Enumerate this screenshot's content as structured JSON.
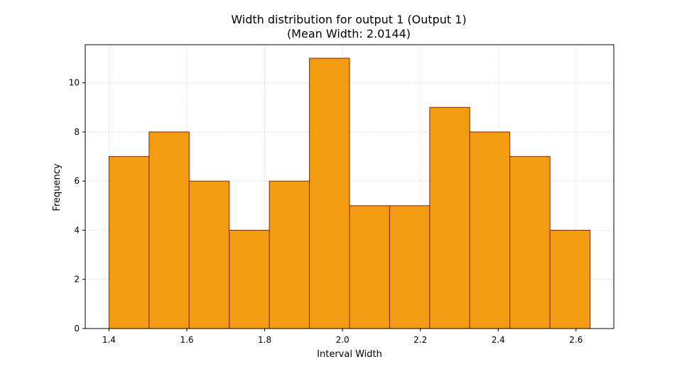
{
  "chart_data": {
    "type": "bar",
    "title": "Width distribution for output 1 (Output 1)",
    "subtitle": "(Mean Width: 2.0144)",
    "xlabel": "Interval Width",
    "ylabel": "Frequency",
    "bins": [
      {
        "start": 1.4,
        "end": 1.503,
        "count": 7
      },
      {
        "start": 1.503,
        "end": 1.606,
        "count": 8
      },
      {
        "start": 1.606,
        "end": 1.709,
        "count": 6
      },
      {
        "start": 1.709,
        "end": 1.812,
        "count": 4
      },
      {
        "start": 1.812,
        "end": 1.915,
        "count": 6
      },
      {
        "start": 1.915,
        "end": 2.018,
        "count": 11
      },
      {
        "start": 2.018,
        "end": 2.121,
        "count": 5
      },
      {
        "start": 2.121,
        "end": 2.224,
        "count": 5
      },
      {
        "start": 2.224,
        "end": 2.327,
        "count": 9
      },
      {
        "start": 2.327,
        "end": 2.43,
        "count": 8
      },
      {
        "start": 2.43,
        "end": 2.533,
        "count": 7
      },
      {
        "start": 2.533,
        "end": 2.636,
        "count": 4
      }
    ],
    "xlim": [
      1.339,
      2.697
    ],
    "ylim": [
      0,
      11.55
    ],
    "xticks": [
      1.4,
      1.6,
      1.8,
      2.0,
      2.2,
      2.4,
      2.6
    ],
    "xtick_labels": [
      "1.4",
      "1.6",
      "1.8",
      "2.0",
      "2.2",
      "2.4",
      "2.6"
    ],
    "yticks": [
      0,
      2,
      4,
      6,
      8,
      10
    ],
    "ytick_labels": [
      "0",
      "2",
      "4",
      "6",
      "8",
      "10"
    ],
    "grid": true,
    "bar_color": "#f39c12",
    "edge_color": "#8b2500"
  }
}
